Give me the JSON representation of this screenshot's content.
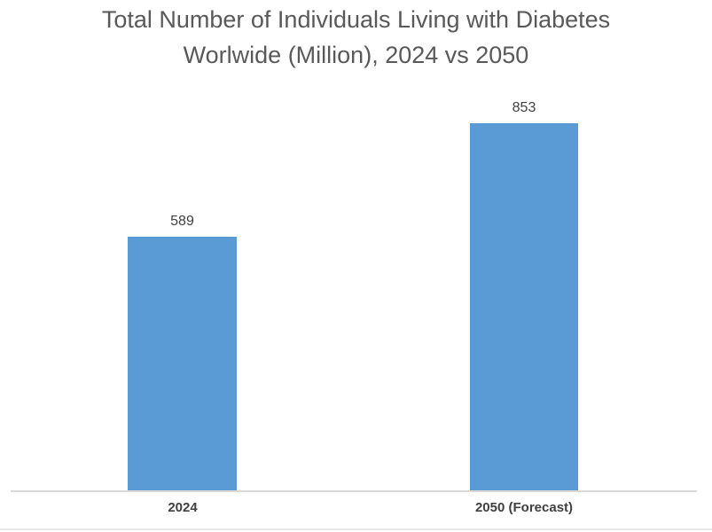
{
  "chart_data": {
    "type": "bar",
    "title": "Total Number of Individuals Living with Diabetes Worlwide (Million), 2024 vs 2050",
    "title_lines": [
      "Total Number of Individuals Living with Diabetes",
      "Worlwide (Million), 2024 vs 2050"
    ],
    "categories": [
      "2024",
      "2050 (Forecast)"
    ],
    "values": [
      589,
      853
    ],
    "value_labels": [
      "589",
      "853"
    ],
    "xlabel": "",
    "ylabel": "",
    "ylim": [
      0,
      900
    ],
    "grid": false,
    "legend": false,
    "data_labels_position": "above bars",
    "bar_color": "#5B9BD5",
    "axis_line_color": "#D9D9D9",
    "title_color": "#595959",
    "label_color": "#404040"
  }
}
